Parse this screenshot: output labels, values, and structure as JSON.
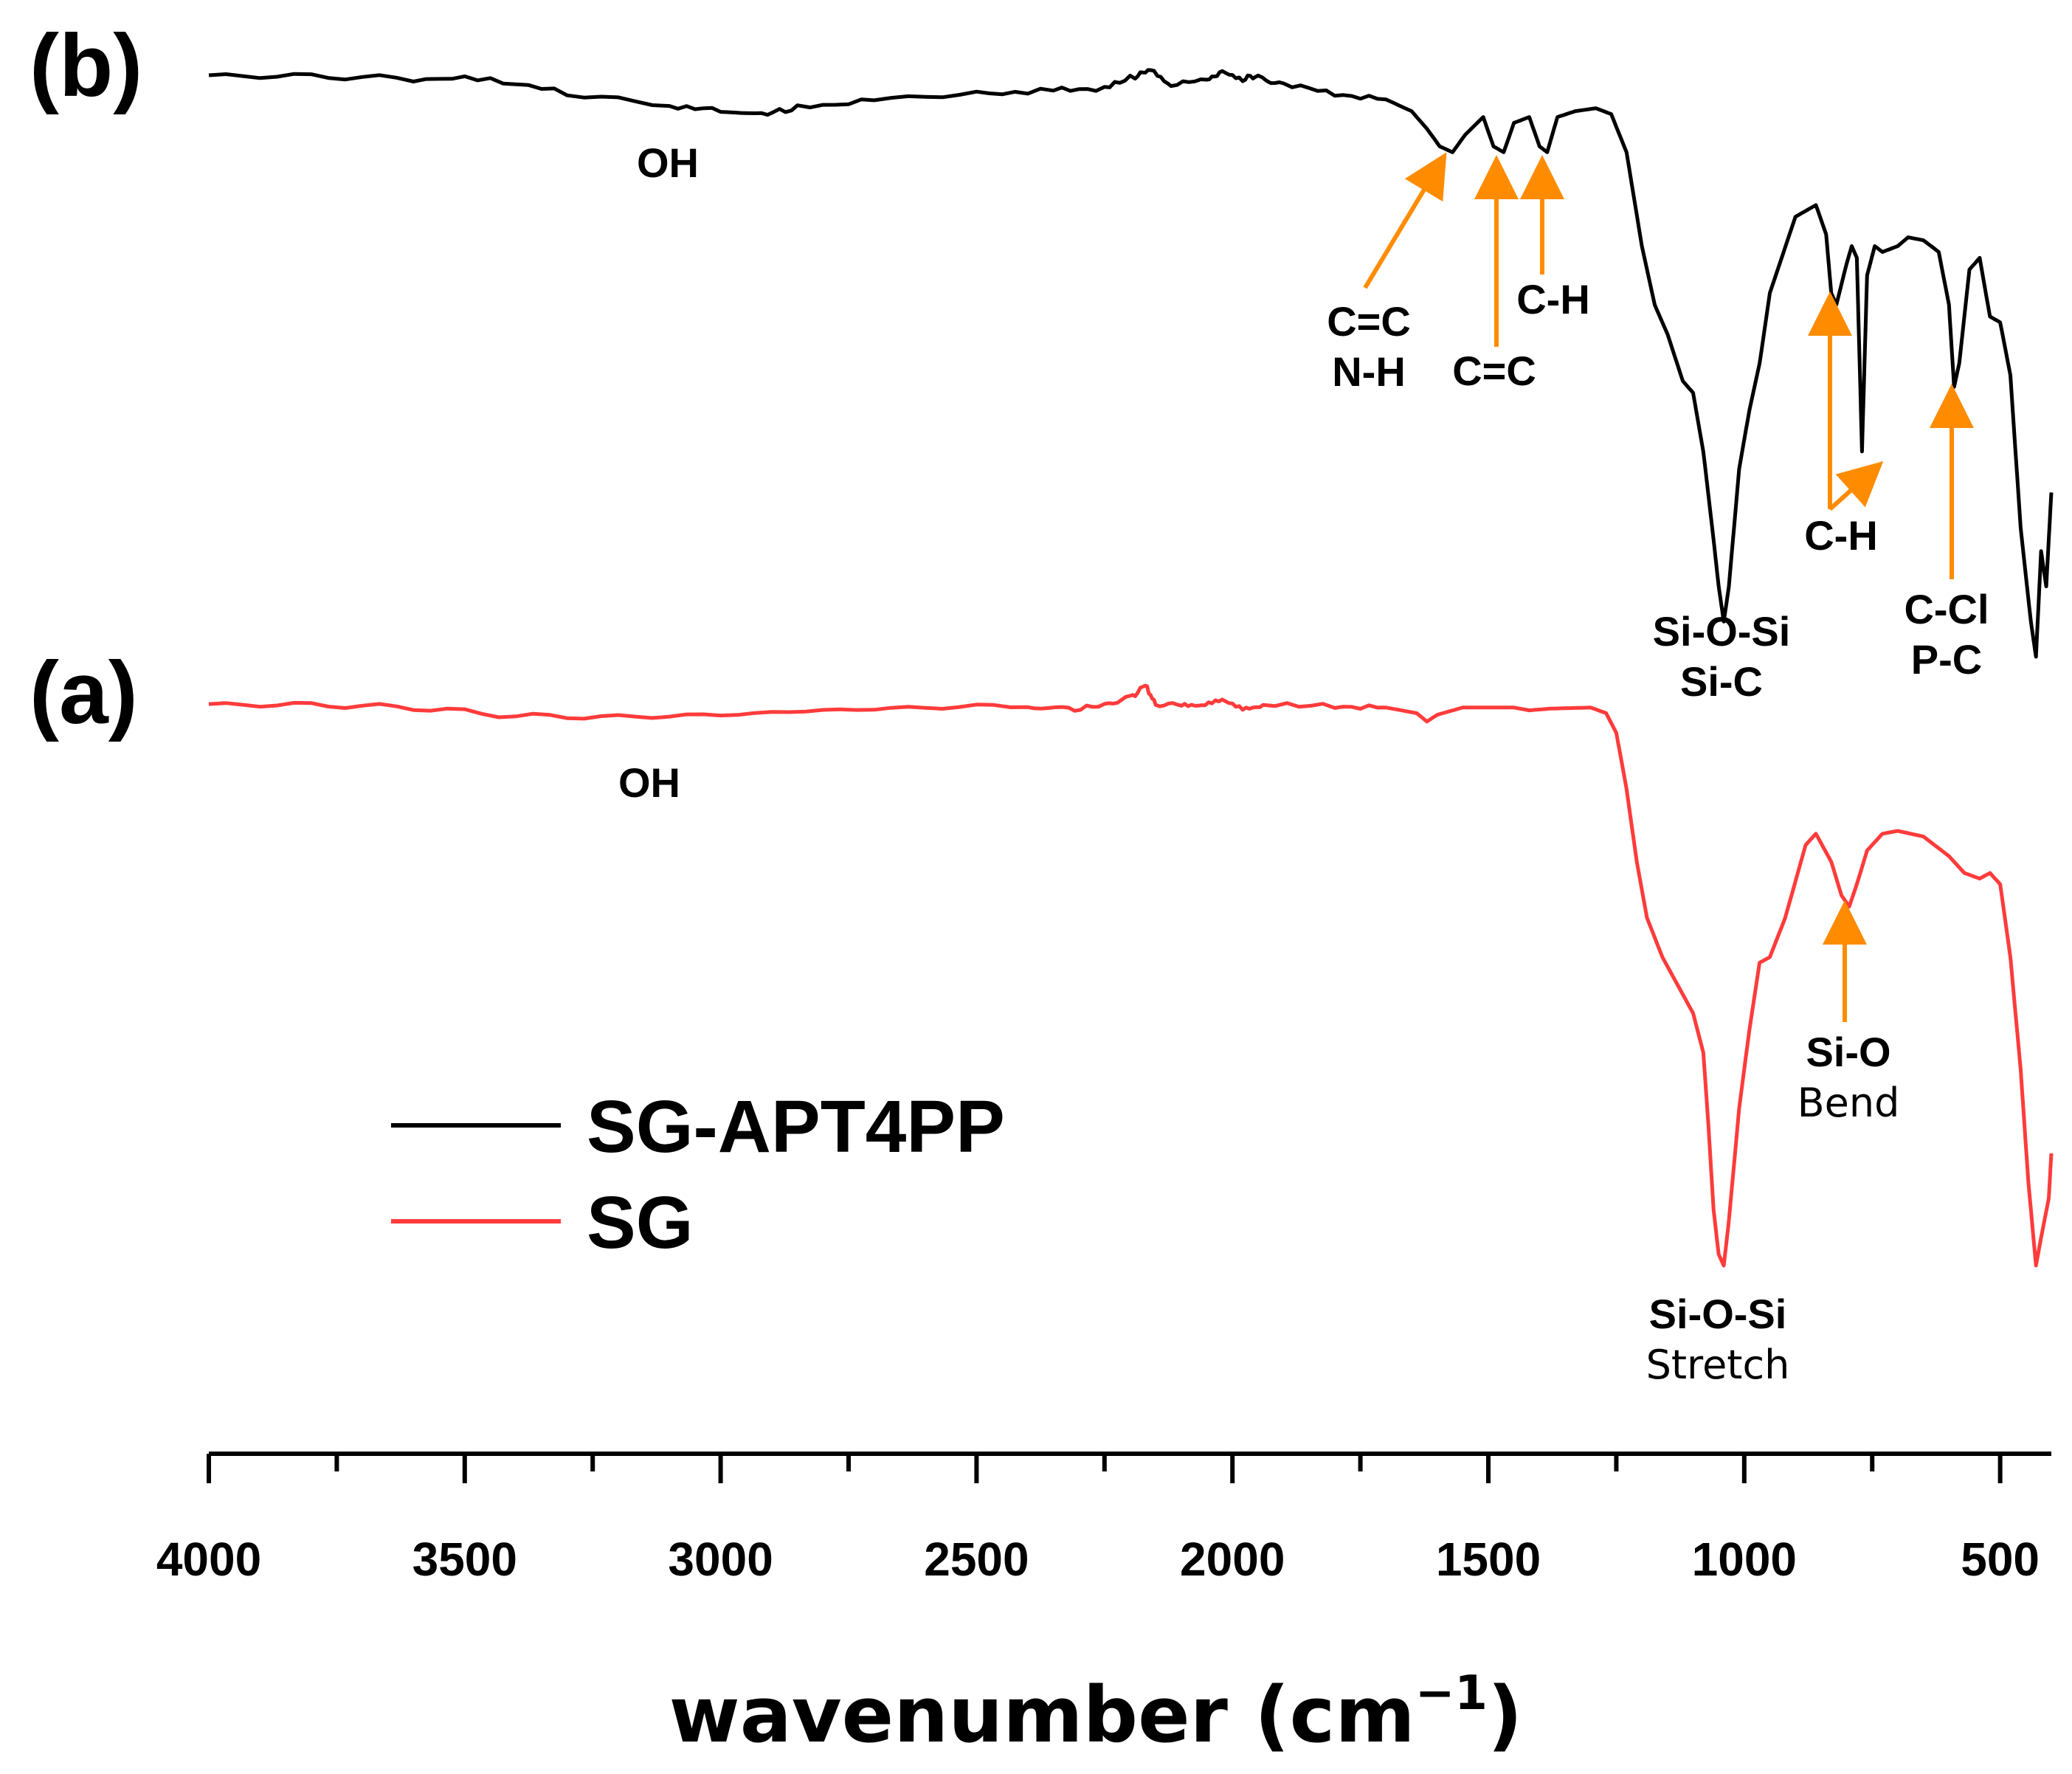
{
  "chart_data": {
    "type": "line",
    "title": "",
    "xlabel": "wavenumber (cm",
    "xlabel_superscript": "−1",
    "xlabel_suffix": ")",
    "ylabel": "",
    "xlim": [
      4000,
      400
    ],
    "x_reversed": true,
    "x_ticks": [
      4000,
      3500,
      3000,
      2500,
      2000,
      1500,
      1000,
      500
    ],
    "x_ticks_major_labels": [
      "4000",
      "3500",
      "3000",
      "2500",
      "2000",
      "1500",
      "1000",
      "500"
    ],
    "x_ticks_minor": [
      3750,
      3250,
      2750,
      2250,
      1750,
      1250,
      750
    ],
    "grid": false,
    "legend_position": "lower-left",
    "panels": [
      {
        "tag": "(b)",
        "series": "SG-APT4PP"
      },
      {
        "tag": "(a)",
        "series": "SG"
      }
    ],
    "series": [
      {
        "name": "SG-APT4PP",
        "panel": "(b)",
        "color": "#000000",
        "y_unit": "relative transmittance (0 = deepest band, 1 = baseline)",
        "points": [
          [
            4000,
            0.99
          ],
          [
            3800,
            0.99
          ],
          [
            3600,
            0.985
          ],
          [
            3450,
            0.985
          ],
          [
            3300,
            0.96
          ],
          [
            3100,
            0.94
          ],
          [
            3000,
            0.93
          ],
          [
            2920,
            0.925
          ],
          [
            2850,
            0.935
          ],
          [
            2700,
            0.95
          ],
          [
            2500,
            0.96
          ],
          [
            2350,
            0.965
          ],
          [
            2250,
            0.97
          ],
          [
            2190,
            0.99
          ],
          [
            2160,
            1.0
          ],
          [
            2120,
            0.975
          ],
          [
            2050,
            0.985
          ],
          [
            2020,
            0.995
          ],
          [
            1980,
            0.985
          ],
          [
            1950,
            0.99
          ],
          [
            1900,
            0.975
          ],
          [
            1800,
            0.96
          ],
          [
            1700,
            0.95
          ],
          [
            1650,
            0.93
          ],
          [
            1620,
            0.9
          ],
          [
            1595,
            0.87
          ],
          [
            1570,
            0.86
          ],
          [
            1545,
            0.89
          ],
          [
            1510,
            0.92
          ],
          [
            1490,
            0.87
          ],
          [
            1470,
            0.86
          ],
          [
            1450,
            0.91
          ],
          [
            1420,
            0.92
          ],
          [
            1400,
            0.87
          ],
          [
            1385,
            0.86
          ],
          [
            1365,
            0.92
          ],
          [
            1330,
            0.93
          ],
          [
            1290,
            0.935
          ],
          [
            1260,
            0.925
          ],
          [
            1230,
            0.86
          ],
          [
            1200,
            0.7
          ],
          [
            1175,
            0.6
          ],
          [
            1150,
            0.55
          ],
          [
            1120,
            0.47
          ],
          [
            1100,
            0.45
          ],
          [
            1080,
            0.35
          ],
          [
            1060,
            0.2
          ],
          [
            1050,
            0.12
          ],
          [
            1040,
            0.06
          ],
          [
            1030,
            0.12
          ],
          [
            1010,
            0.32
          ],
          [
            990,
            0.42
          ],
          [
            970,
            0.5
          ],
          [
            950,
            0.62
          ],
          [
            900,
            0.75
          ],
          [
            860,
            0.77
          ],
          [
            840,
            0.72
          ],
          [
            830,
            0.62
          ],
          [
            820,
            0.6
          ],
          [
            800,
            0.67
          ],
          [
            790,
            0.7
          ],
          [
            780,
            0.68
          ],
          [
            770,
            0.35
          ],
          [
            760,
            0.65
          ],
          [
            745,
            0.7
          ],
          [
            730,
            0.69
          ],
          [
            700,
            0.7
          ],
          [
            680,
            0.715
          ],
          [
            650,
            0.71
          ],
          [
            620,
            0.69
          ],
          [
            600,
            0.6
          ],
          [
            590,
            0.46
          ],
          [
            580,
            0.5
          ],
          [
            560,
            0.66
          ],
          [
            540,
            0.68
          ],
          [
            520,
            0.58
          ],
          [
            500,
            0.57
          ],
          [
            480,
            0.48
          ],
          [
            460,
            0.22
          ],
          [
            440,
            0.06
          ],
          [
            430,
            0.0
          ],
          [
            420,
            0.18
          ],
          [
            410,
            0.12
          ],
          [
            400,
            0.28
          ]
        ]
      },
      {
        "name": "SG",
        "panel": "(a)",
        "color": "#ff3b3b",
        "y_unit": "relative transmittance (0 = deepest band, 1 = baseline)",
        "points": [
          [
            4000,
            1.0
          ],
          [
            3800,
            1.0
          ],
          [
            3600,
            0.995
          ],
          [
            3400,
            0.98
          ],
          [
            3200,
            0.978
          ],
          [
            3000,
            0.982
          ],
          [
            2800,
            0.99
          ],
          [
            2600,
            0.995
          ],
          [
            2400,
            0.999
          ],
          [
            2320,
            0.99
          ],
          [
            2250,
            1.0
          ],
          [
            2200,
            1.012
          ],
          [
            2170,
            1.035
          ],
          [
            2150,
            1.0
          ],
          [
            2100,
            1.003
          ],
          [
            2060,
            0.997
          ],
          [
            2020,
            1.006
          ],
          [
            1980,
            0.995
          ],
          [
            1940,
            1.0
          ],
          [
            1800,
            0.998
          ],
          [
            1700,
            0.995
          ],
          [
            1640,
            0.985
          ],
          [
            1620,
            0.97
          ],
          [
            1600,
            0.982
          ],
          [
            1550,
            0.995
          ],
          [
            1450,
            0.995
          ],
          [
            1420,
            0.99
          ],
          [
            1380,
            0.993
          ],
          [
            1300,
            0.995
          ],
          [
            1270,
            0.985
          ],
          [
            1250,
            0.95
          ],
          [
            1230,
            0.85
          ],
          [
            1210,
            0.72
          ],
          [
            1190,
            0.62
          ],
          [
            1160,
            0.55
          ],
          [
            1130,
            0.5
          ],
          [
            1100,
            0.45
          ],
          [
            1080,
            0.38
          ],
          [
            1070,
            0.25
          ],
          [
            1060,
            0.1
          ],
          [
            1050,
            0.02
          ],
          [
            1040,
            0.0
          ],
          [
            1030,
            0.08
          ],
          [
            1010,
            0.28
          ],
          [
            990,
            0.42
          ],
          [
            970,
            0.54
          ],
          [
            950,
            0.55
          ],
          [
            920,
            0.62
          ],
          [
            880,
            0.75
          ],
          [
            860,
            0.77
          ],
          [
            830,
            0.72
          ],
          [
            810,
            0.66
          ],
          [
            795,
            0.64
          ],
          [
            780,
            0.68
          ],
          [
            760,
            0.74
          ],
          [
            730,
            0.77
          ],
          [
            700,
            0.775
          ],
          [
            650,
            0.765
          ],
          [
            600,
            0.73
          ],
          [
            570,
            0.7
          ],
          [
            540,
            0.69
          ],
          [
            520,
            0.7
          ],
          [
            500,
            0.68
          ],
          [
            480,
            0.55
          ],
          [
            460,
            0.35
          ],
          [
            445,
            0.15
          ],
          [
            430,
            0.0
          ],
          [
            420,
            0.05
          ],
          [
            405,
            0.12
          ],
          [
            400,
            0.2
          ]
        ]
      }
    ],
    "annotations": [
      {
        "series": "SG-APT4PP",
        "lines": [
          "OH"
        ],
        "style": [
          "bold"
        ]
      },
      {
        "series": "SG-APT4PP",
        "lines": [
          "C=C",
          "N-H"
        ],
        "style": [
          "bold",
          "bold"
        ],
        "arrow_to_wavenumber": 1590
      },
      {
        "series": "SG-APT4PP",
        "lines": [
          "C=C"
        ],
        "style": [
          "bold"
        ],
        "arrow_to_wavenumber": 1480
      },
      {
        "series": "SG-APT4PP",
        "lines": [
          "C-H"
        ],
        "style": [
          "bold"
        ],
        "arrow_to_wavenumber": 1385
      },
      {
        "series": "SG-APT4PP",
        "lines": [
          "Si-O-Si",
          "Si-C"
        ],
        "style": [
          "bold",
          "bold"
        ]
      },
      {
        "series": "SG-APT4PP",
        "lines": [
          "C-H"
        ],
        "style": [
          "bold"
        ],
        "arrow_to_wavenumber": [
          825,
          770
        ]
      },
      {
        "series": "SG-APT4PP",
        "lines": [
          "C-Cl",
          "P-C"
        ],
        "style": [
          "bold",
          "bold"
        ],
        "arrow_to_wavenumber": 590
      },
      {
        "series": "SG",
        "lines": [
          "OH"
        ],
        "style": [
          "bold"
        ]
      },
      {
        "series": "SG",
        "lines": [
          "Si-O",
          "Bend"
        ],
        "style": [
          "bold",
          "normal"
        ],
        "arrow_to_wavenumber": 795
      },
      {
        "series": "SG",
        "lines": [
          "Si-O-Si",
          "Stretch"
        ],
        "style": [
          "bold",
          "normal"
        ]
      }
    ],
    "arrow_color": "#ff8c00"
  },
  "legend": [
    {
      "label": "SG-APT4PP",
      "color": "#000000"
    },
    {
      "label": "SG",
      "color": "#ff3b3b"
    }
  ]
}
